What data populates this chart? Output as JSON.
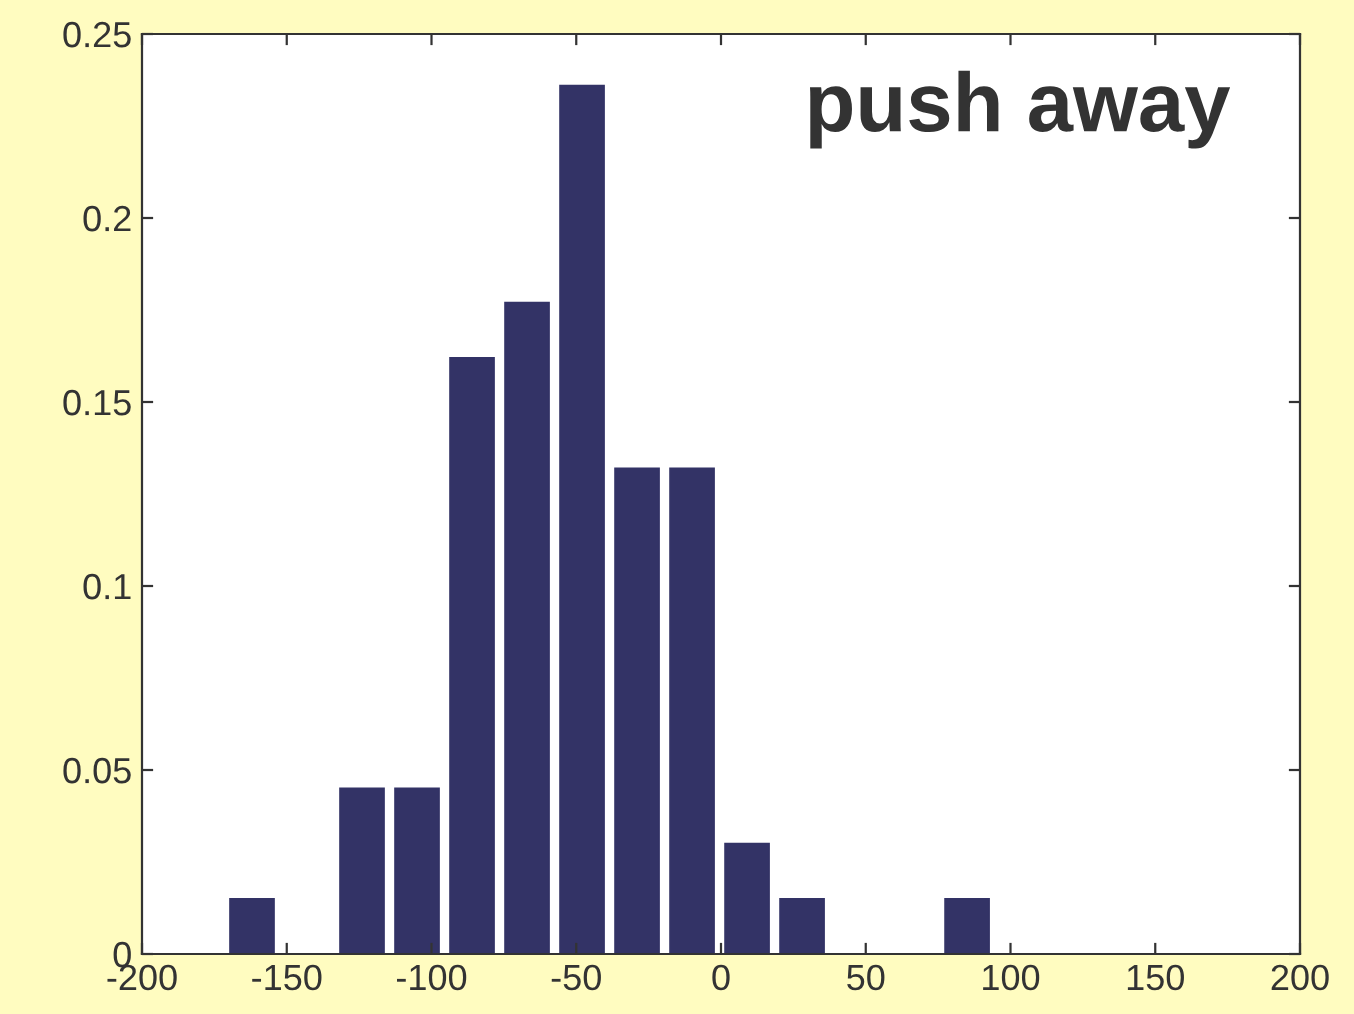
{
  "chart_data": {
    "type": "bar",
    "title": "push away",
    "x": [
      -181,
      -162,
      -143,
      -124,
      -105,
      -86,
      -67,
      -48,
      -29,
      -10,
      9,
      28,
      47,
      66,
      85,
      104,
      123,
      142,
      161,
      180
    ],
    "values": [
      0,
      0.015,
      0,
      0.045,
      0.045,
      0.162,
      0.177,
      0.236,
      0.132,
      0.132,
      0.03,
      0.015,
      0,
      0,
      0.015,
      0,
      0,
      0,
      0,
      0
    ],
    "color": "#333366",
    "xlim": [
      -200,
      200
    ],
    "xticks": [
      -200,
      -150,
      -100,
      -50,
      0,
      50,
      100,
      150,
      200
    ],
    "ylim": [
      0,
      0.25
    ],
    "yticks": [
      0,
      0.05,
      0.1,
      0.15,
      0.2,
      0.25
    ],
    "grid": false,
    "legend": false
  }
}
